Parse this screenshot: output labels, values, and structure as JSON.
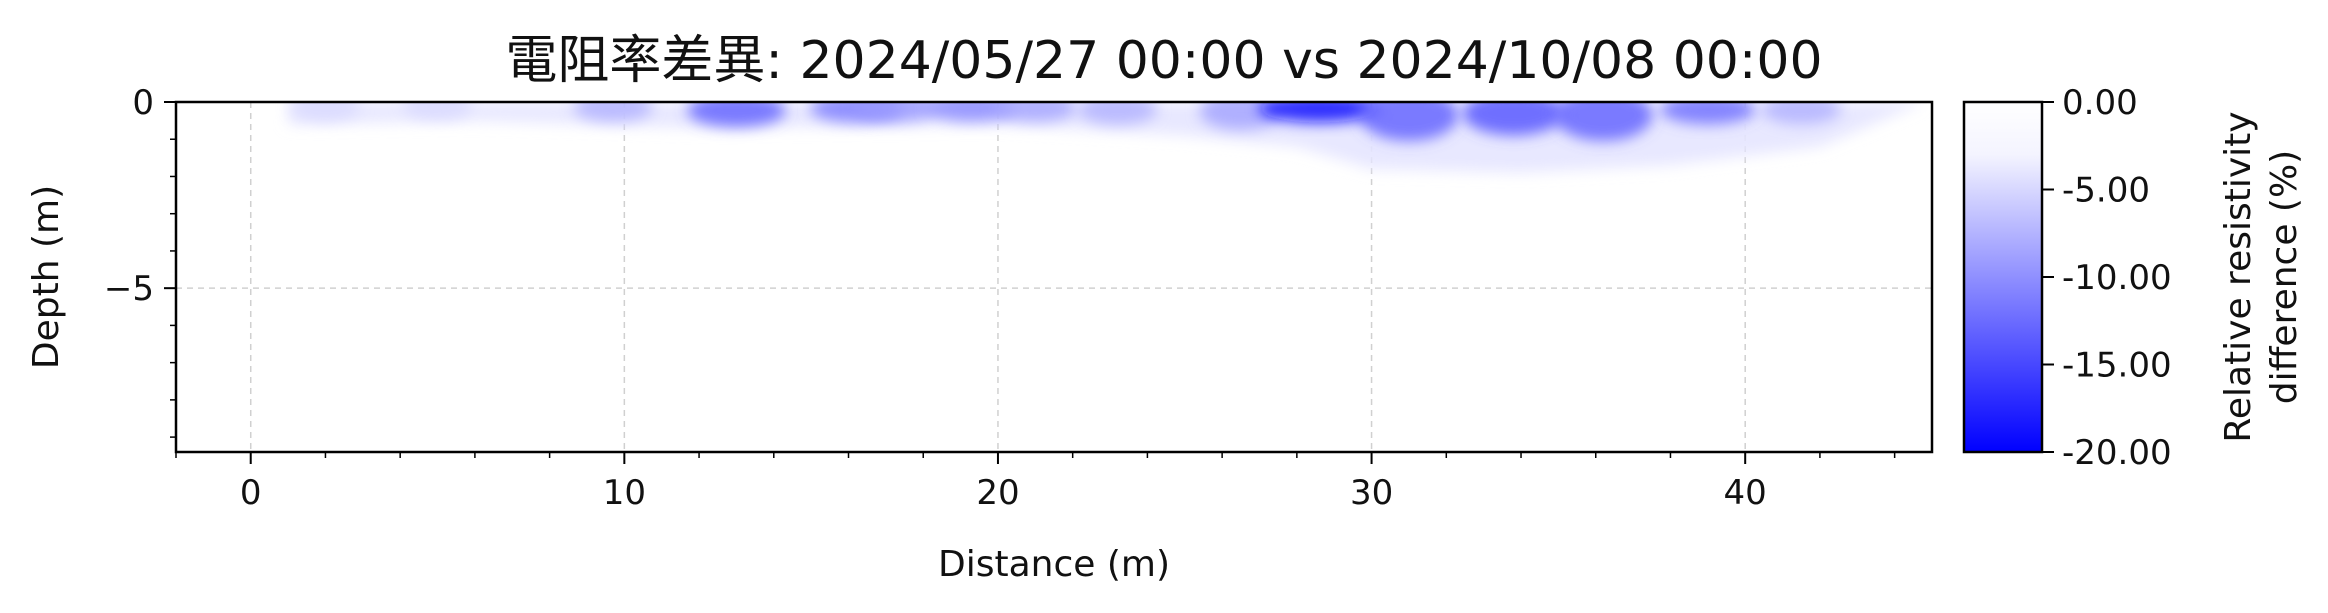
{
  "chart_data": {
    "type": "heatmap",
    "title": "電阻率差異: 2024/05/27 00:00 vs 2024/10/08 00:00",
    "xlabel": "Distance (m)",
    "ylabel": "Depth (m)",
    "xlim": [
      -2,
      45
    ],
    "ylim": [
      -9.4,
      0
    ],
    "x_ticks": [
      0,
      10,
      20,
      30,
      40
    ],
    "x_tick_labels": [
      "0",
      "10",
      "20",
      "30",
      "40"
    ],
    "y_ticks": [
      0,
      -5
    ],
    "y_tick_labels": [
      "0",
      "−5"
    ],
    "grid": true,
    "colorbar": {
      "label": [
        "Relative resistivity",
        "difference (%)"
      ],
      "range": [
        -20,
        0
      ],
      "ticks": [
        0,
        -5,
        -10,
        -15,
        -20
      ],
      "tick_labels": [
        "0.00",
        "-5.00",
        "-10.00",
        "-15.00",
        "-20.00"
      ],
      "color_min": "#0000ff",
      "color_max": "#ffffff"
    },
    "anomalies": [
      {
        "x": 2.0,
        "depth": 0.25,
        "value": -3
      },
      {
        "x": 5.0,
        "depth": 0.2,
        "value": -3
      },
      {
        "x": 9.7,
        "depth": 0.3,
        "value": -6
      },
      {
        "x": 13.0,
        "depth": 0.45,
        "value": -12
      },
      {
        "x": 16.2,
        "depth": 0.35,
        "value": -10
      },
      {
        "x": 17.3,
        "depth": 0.3,
        "value": -8
      },
      {
        "x": 19.3,
        "depth": 0.3,
        "value": -9
      },
      {
        "x": 21.0,
        "depth": 0.3,
        "value": -7
      },
      {
        "x": 23.2,
        "depth": 0.4,
        "value": -6
      },
      {
        "x": 26.5,
        "depth": 0.5,
        "value": -7
      },
      {
        "x": 28.6,
        "depth": 0.35,
        "value": -19
      },
      {
        "x": 31.0,
        "depth": 0.7,
        "value": -12
      },
      {
        "x": 33.8,
        "depth": 0.6,
        "value": -13
      },
      {
        "x": 36.2,
        "depth": 0.7,
        "value": -12
      },
      {
        "x": 39.0,
        "depth": 0.4,
        "value": -11
      },
      {
        "x": 41.5,
        "depth": 0.4,
        "value": -6
      }
    ],
    "anomaly_envelope": [
      {
        "x": 1.0,
        "depth": 0.6
      },
      {
        "x": 6.0,
        "depth": 0.5
      },
      {
        "x": 12.0,
        "depth": 0.7
      },
      {
        "x": 20.0,
        "depth": 0.6
      },
      {
        "x": 25.0,
        "depth": 0.9
      },
      {
        "x": 28.0,
        "depth": 1.2
      },
      {
        "x": 30.0,
        "depth": 1.8
      },
      {
        "x": 34.0,
        "depth": 1.9
      },
      {
        "x": 38.0,
        "depth": 1.7
      },
      {
        "x": 42.0,
        "depth": 1.2
      },
      {
        "x": 44.8,
        "depth": 0.0
      }
    ]
  }
}
